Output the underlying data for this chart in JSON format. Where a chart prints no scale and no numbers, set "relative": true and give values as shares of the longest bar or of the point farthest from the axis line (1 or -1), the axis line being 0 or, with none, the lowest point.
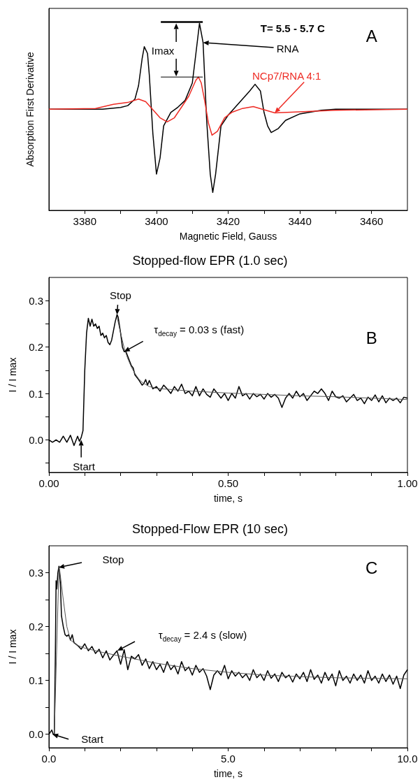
{
  "chart_data": [
    {
      "type": "line",
      "relative": true,
      "xlabel": "Magnetic Field, Gauss",
      "ylabel": "Absorption First Derivative",
      "xlim": [
        3370,
        3470
      ],
      "xticks": [
        3380,
        {
          "value": 3390,
          "label": null
        },
        3400,
        {
          "value": 3410,
          "label": null
        },
        3420,
        {
          "value": 3430,
          "label": null
        },
        3440,
        {
          "value": 3450,
          "label": null
        },
        3460
      ],
      "series": [
        {
          "name": "RNA",
          "color": "#000000",
          "x": [
            3370,
            3385,
            3390,
            3392,
            3394,
            3395,
            3396,
            3396.6,
            3397.5,
            3398,
            3399,
            3400,
            3401,
            3402,
            3404,
            3406,
            3408,
            3410,
            3411,
            3412,
            3413,
            3414,
            3415,
            3415.7,
            3416.5,
            3418,
            3420,
            3422,
            3424,
            3426,
            3427.5,
            3429,
            3430,
            3431,
            3432,
            3434,
            3436,
            3440,
            3446,
            3450,
            3470
          ],
          "values": [
            0.541,
            0.541,
            0.55,
            0.56,
            0.595,
            0.667,
            0.811,
            0.875,
            0.839,
            0.725,
            0.409,
            0.194,
            0.28,
            0.452,
            0.524,
            0.552,
            0.588,
            0.681,
            0.839,
            1.0,
            0.897,
            0.481,
            0.194,
            0.096,
            0.194,
            0.452,
            0.509,
            0.552,
            0.595,
            0.638,
            0.674,
            0.638,
            0.524,
            0.452,
            0.416,
            0.438,
            0.481,
            0.516,
            0.535,
            0.541,
            0.541
          ]
        },
        {
          "name": "NCp7/RNA  4:1",
          "color": "#ee2b24",
          "x": [
            3370,
            3383,
            3388,
            3392,
            3395,
            3397,
            3399,
            3401,
            3403,
            3405,
            3407,
            3409,
            3411,
            3411.7,
            3412.5,
            3413.5,
            3414.5,
            3415.5,
            3417,
            3419,
            3421,
            3424,
            3427,
            3430,
            3433,
            3440,
            3450,
            3470
          ],
          "values": [
            0.541,
            0.545,
            0.567,
            0.577,
            0.595,
            0.581,
            0.538,
            0.495,
            0.473,
            0.495,
            0.552,
            0.61,
            0.696,
            0.713,
            0.681,
            0.581,
            0.466,
            0.402,
            0.423,
            0.495,
            0.524,
            0.545,
            0.555,
            0.538,
            0.521,
            0.527,
            0.535,
            0.541
          ]
        }
      ],
      "annotations": [
        "T= 5.5 - 5.7 C",
        "A",
        "Imax"
      ]
    },
    {
      "type": "line",
      "title": "Stopped-flow EPR (1.0 sec)",
      "xlabel": "time, s",
      "ylabel": "I / I max",
      "xlim": [
        0,
        1
      ],
      "ylim": [
        -0.07,
        0.35
      ],
      "xticks": [
        {
          "value": 0,
          "label": "0.00"
        },
        {
          "value": 0.1,
          "label": null
        },
        {
          "value": 0.2,
          "label": null
        },
        {
          "value": 0.3,
          "label": null
        },
        {
          "value": 0.4,
          "label": null
        },
        {
          "value": 0.5,
          "label": "0.50"
        },
        {
          "value": 0.6,
          "label": null
        },
        {
          "value": 0.7,
          "label": null
        },
        {
          "value": 0.8,
          "label": null
        },
        {
          "value": 0.9,
          "label": null
        },
        {
          "value": 1,
          "label": "1.00"
        }
      ],
      "yticks": [
        {
          "value": -0.05,
          "label": null
        },
        {
          "value": 0,
          "label": "0.0"
        },
        {
          "value": 0.05,
          "label": null
        },
        {
          "value": 0.1,
          "label": "0.1"
        },
        {
          "value": 0.15,
          "label": null
        },
        {
          "value": 0.2,
          "label": "0.2"
        },
        {
          "value": 0.25,
          "label": null
        },
        {
          "value": 0.3,
          "label": "0.3"
        }
      ],
      "series": [
        {
          "color": "#000000",
          "x": [
            0,
            0.01,
            0.02,
            0.03,
            0.04,
            0.05,
            0.06,
            0.07,
            0.08,
            0.085,
            0.09,
            0.095,
            0.1,
            0.105,
            0.11,
            0.115,
            0.12,
            0.125,
            0.13,
            0.135,
            0.14,
            0.145,
            0.15,
            0.155,
            0.16,
            0.165,
            0.17,
            0.175,
            0.18,
            0.185,
            0.19,
            0.193,
            0.2,
            0.205,
            0.21,
            0.215,
            0.22,
            0.23,
            0.235,
            0.24,
            0.25,
            0.26,
            0.265,
            0.27,
            0.275,
            0.28,
            0.29,
            0.3,
            0.31,
            0.32,
            0.33,
            0.34,
            0.35,
            0.36,
            0.37,
            0.38,
            0.39,
            0.4,
            0.41,
            0.42,
            0.43,
            0.44,
            0.45,
            0.46,
            0.47,
            0.48,
            0.49,
            0.5,
            0.51,
            0.52,
            0.53,
            0.54,
            0.55,
            0.56,
            0.57,
            0.58,
            0.59,
            0.6,
            0.61,
            0.62,
            0.63,
            0.64,
            0.65,
            0.66,
            0.67,
            0.68,
            0.69,
            0.7,
            0.71,
            0.72,
            0.73,
            0.74,
            0.75,
            0.76,
            0.77,
            0.78,
            0.79,
            0.8,
            0.81,
            0.82,
            0.83,
            0.84,
            0.85,
            0.86,
            0.87,
            0.88,
            0.89,
            0.9,
            0.91,
            0.92,
            0.93,
            0.94,
            0.95,
            0.96,
            0.97,
            0.98,
            0.99,
            1.0
          ],
          "values": [
            0,
            -0.005,
            0,
            -0.005,
            0.008,
            -0.005,
            0.01,
            -0.012,
            0.008,
            -0.003,
            0.005,
            0.02,
            0.15,
            0.23,
            0.262,
            0.245,
            0.26,
            0.245,
            0.25,
            0.24,
            0.245,
            0.225,
            0.23,
            0.22,
            0.225,
            0.21,
            0.205,
            0.215,
            0.235,
            0.255,
            0.27,
            0.265,
            0.23,
            0.2,
            0.19,
            0.19,
            0.18,
            0.16,
            0.155,
            0.14,
            0.13,
            0.118,
            0.122,
            0.13,
            0.118,
            0.128,
            0.11,
            0.115,
            0.105,
            0.118,
            0.11,
            0.1,
            0.115,
            0.105,
            0.12,
            0.1,
            0.105,
            0.095,
            0.115,
            0.095,
            0.11,
            0.098,
            0.092,
            0.11,
            0.1,
            0.09,
            0.1,
            0.085,
            0.1,
            0.09,
            0.115,
            0.095,
            0.1,
            0.088,
            0.1,
            0.093,
            0.098,
            0.088,
            0.1,
            0.092,
            0.098,
            0.09,
            0.07,
            0.09,
            0.1,
            0.09,
            0.105,
            0.093,
            0.1,
            0.085,
            0.095,
            0.105,
            0.1,
            0.11,
            0.1,
            0.085,
            0.105,
            0.093,
            0.09,
            0.095,
            0.082,
            0.09,
            0.098,
            0.085,
            0.09,
            0.078,
            0.092,
            0.085,
            0.097,
            0.082,
            0.095,
            0.08,
            0.09,
            0.085,
            0.09,
            0.08,
            0.092,
            0.09
          ]
        },
        {
          "color": "#555555",
          "x": [
            0.19,
            0.2,
            0.21,
            0.22,
            0.23,
            0.24,
            0.25,
            0.26,
            0.28,
            0.3,
            0.4,
            0.5,
            0.6,
            0.7,
            0.8,
            0.9,
            1.0
          ],
          "values": [
            0.265,
            0.23,
            0.198,
            0.175,
            0.157,
            0.143,
            0.132,
            0.124,
            0.115,
            0.111,
            0.105,
            0.101,
            0.098,
            0.095,
            0.093,
            0.09,
            0.087
          ]
        }
      ],
      "annotations": [
        "B",
        {
          "text": "Stop",
          "x": 0.19,
          "y": 0.27
        },
        {
          "text": "Start",
          "x": 0.09,
          "y": 0
        },
        {
          "text": "τ$_{decay}$ = 0.03 s (fast)",
          "x": 0.21,
          "y": 0.19
        }
      ]
    },
    {
      "type": "line",
      "title": "Stopped-Flow EPR (10 sec)",
      "xlabel": "time, s",
      "ylabel": "I / I max",
      "xlim": [
        0,
        10
      ],
      "ylim": [
        -0.025,
        0.35
      ],
      "xticks": [
        {
          "value": 0,
          "label": "0.0"
        },
        {
          "value": 1,
          "label": null
        },
        {
          "value": 2,
          "label": null
        },
        {
          "value": 3,
          "label": null
        },
        {
          "value": 4,
          "label": null
        },
        {
          "value": 5,
          "label": "5.0"
        },
        {
          "value": 6,
          "label": null
        },
        {
          "value": 7,
          "label": null
        },
        {
          "value": 8,
          "label": null
        },
        {
          "value": 9,
          "label": null
        },
        {
          "value": 10,
          "label": "10.0"
        }
      ],
      "yticks": [
        {
          "value": 0,
          "label": "0.0"
        },
        {
          "value": 0.05,
          "label": null
        },
        {
          "value": 0.1,
          "label": "0.1"
        },
        {
          "value": 0.15,
          "label": null
        },
        {
          "value": 0.2,
          "label": "0.2"
        },
        {
          "value": 0.25,
          "label": null
        },
        {
          "value": 0.3,
          "label": "0.3"
        }
      ],
      "series": [
        {
          "color": "#000000",
          "x": [
            0,
            0.05,
            0.08,
            0.12,
            0.15,
            0.18,
            0.2,
            0.22,
            0.25,
            0.28,
            0.32,
            0.35,
            0.4,
            0.45,
            0.5,
            0.55,
            0.6,
            0.65,
            0.7,
            0.8,
            0.9,
            1.0,
            1.1,
            1.2,
            1.3,
            1.4,
            1.5,
            1.6,
            1.7,
            1.8,
            1.9,
            2.0,
            2.1,
            2.2,
            2.3,
            2.4,
            2.5,
            2.6,
            2.7,
            2.8,
            2.9,
            3.0,
            3.1,
            3.2,
            3.3,
            3.4,
            3.5,
            3.6,
            3.7,
            3.8,
            3.9,
            4.0,
            4.1,
            4.2,
            4.3,
            4.4,
            4.5,
            4.6,
            4.7,
            4.8,
            4.9,
            5.0,
            5.1,
            5.2,
            5.3,
            5.4,
            5.5,
            5.6,
            5.7,
            5.8,
            5.9,
            6.0,
            6.1,
            6.2,
            6.3,
            6.4,
            6.5,
            6.6,
            6.7,
            6.8,
            6.9,
            7.0,
            7.1,
            7.2,
            7.3,
            7.4,
            7.5,
            7.6,
            7.7,
            7.8,
            7.9,
            8.0,
            8.1,
            8.2,
            8.3,
            8.4,
            8.5,
            8.6,
            8.7,
            8.8,
            8.9,
            9.0,
            9.1,
            9.2,
            9.3,
            9.4,
            9.5,
            9.6,
            9.7,
            9.8,
            9.9,
            10.0
          ],
          "values": [
            0,
            0.005,
            0.008,
            0,
            0,
            0.15,
            0.285,
            0.27,
            0.3,
            0.312,
            0.28,
            0.22,
            0.2,
            0.185,
            0.182,
            0.185,
            0.175,
            0.185,
            0.17,
            0.165,
            0.158,
            0.168,
            0.155,
            0.163,
            0.15,
            0.158,
            0.142,
            0.155,
            0.138,
            0.147,
            0.155,
            0.13,
            0.157,
            0.12,
            0.145,
            0.14,
            0.148,
            0.128,
            0.14,
            0.122,
            0.135,
            0.12,
            0.13,
            0.115,
            0.135,
            0.12,
            0.128,
            0.112,
            0.135,
            0.118,
            0.125,
            0.11,
            0.128,
            0.115,
            0.122,
            0.108,
            0.083,
            0.11,
            0.118,
            0.11,
            0.128,
            0.103,
            0.118,
            0.108,
            0.115,
            0.105,
            0.112,
            0.1,
            0.12,
            0.105,
            0.112,
            0.1,
            0.118,
            0.104,
            0.112,
            0.098,
            0.115,
            0.105,
            0.11,
            0.097,
            0.112,
            0.103,
            0.115,
            0.098,
            0.12,
            0.102,
            0.11,
            0.095,
            0.115,
            0.1,
            0.112,
            0.09,
            0.118,
            0.1,
            0.108,
            0.095,
            0.112,
            0.1,
            0.11,
            0.095,
            0.118,
            0.1,
            0.108,
            0.095,
            0.112,
            0.098,
            0.11,
            0.093,
            0.108,
            0.085,
            0.11,
            0.12
          ]
        },
        {
          "color": "#555555",
          "x": [
            0.15,
            0.28,
            0.3,
            0.4,
            0.5,
            0.6,
            0.8,
            1,
            1.5,
            2,
            3,
            4,
            5,
            6,
            7,
            8,
            9,
            10
          ],
          "values": [
            0,
            0.31,
            0.305,
            0.25,
            0.2,
            0.175,
            0.165,
            0.16,
            0.152,
            0.145,
            0.132,
            0.122,
            0.115,
            0.11,
            0.107,
            0.105,
            0.104,
            0.103
          ]
        }
      ],
      "annotations": [
        "C",
        "Stop",
        {
          "text": "Start",
          "x": 0.1,
          "y": 0
        },
        "τ$_{decay}$ = 2.4 s (slow)"
      ]
    }
  ]
}
